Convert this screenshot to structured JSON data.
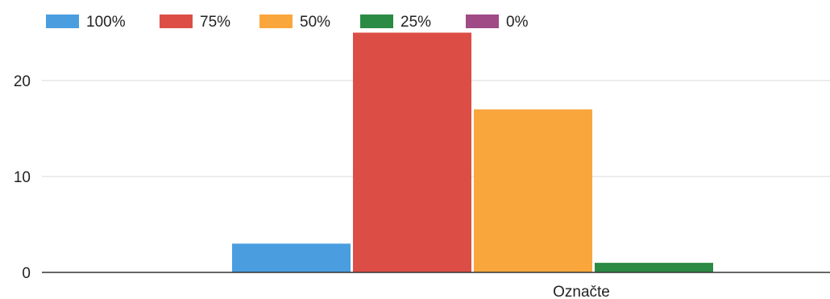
{
  "chart_data": {
    "type": "bar",
    "categories": [
      "Označte"
    ],
    "series": [
      {
        "name": "100%",
        "values": [
          3
        ],
        "color": "#4a9ee0"
      },
      {
        "name": "75%",
        "values": [
          25
        ],
        "color": "#dc4e45"
      },
      {
        "name": "50%",
        "values": [
          17
        ],
        "color": "#f9a63c"
      },
      {
        "name": "25%",
        "values": [
          1
        ],
        "color": "#2b8a44"
      },
      {
        "name": "0%",
        "values": [
          0
        ],
        "color": "#a04a86"
      }
    ],
    "yticks": [
      0,
      10,
      20
    ],
    "ylim": [
      0,
      26
    ],
    "grid": true,
    "legend_position": "top-left",
    "title": "",
    "xlabel": "",
    "ylabel": ""
  }
}
